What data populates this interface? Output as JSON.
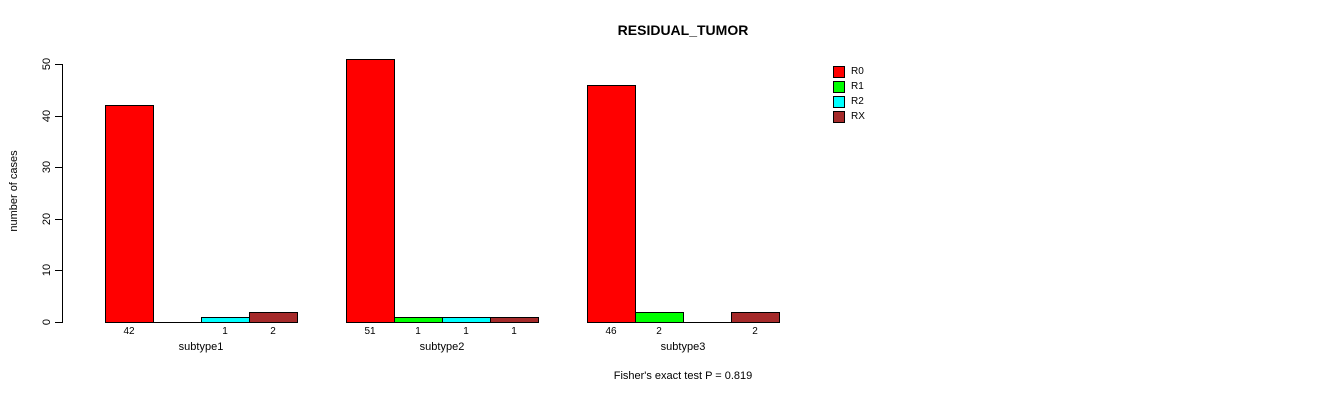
{
  "chart_data": {
    "type": "bar",
    "title": "RESIDUAL_TUMOR",
    "ylabel": "number of cases",
    "xlabel": "",
    "ylim": [
      0,
      50
    ],
    "yticks": [
      0,
      10,
      20,
      30,
      40,
      50
    ],
    "grid": false,
    "legend_position": "right",
    "categories": [
      "subtype1",
      "subtype2",
      "subtype3"
    ],
    "series": [
      {
        "name": "R0",
        "color": "#FF0000",
        "values": [
          42,
          51,
          46
        ]
      },
      {
        "name": "R1",
        "color": "#00FF00",
        "values": [
          0,
          1,
          2
        ]
      },
      {
        "name": "R2",
        "color": "#00FFFF",
        "values": [
          1,
          1,
          0
        ]
      },
      {
        "name": "RX",
        "color": "#A52A2A",
        "values": [
          2,
          1,
          2
        ]
      }
    ],
    "bar_value_labels": {
      "subtype1": [
        "42",
        "",
        "1",
        "2"
      ],
      "subtype2": [
        "51",
        "1",
        "1",
        "1"
      ],
      "subtype3": [
        "46",
        "2",
        "",
        "2"
      ]
    },
    "annotation": "Fisher's exact test P = 0.819"
  }
}
